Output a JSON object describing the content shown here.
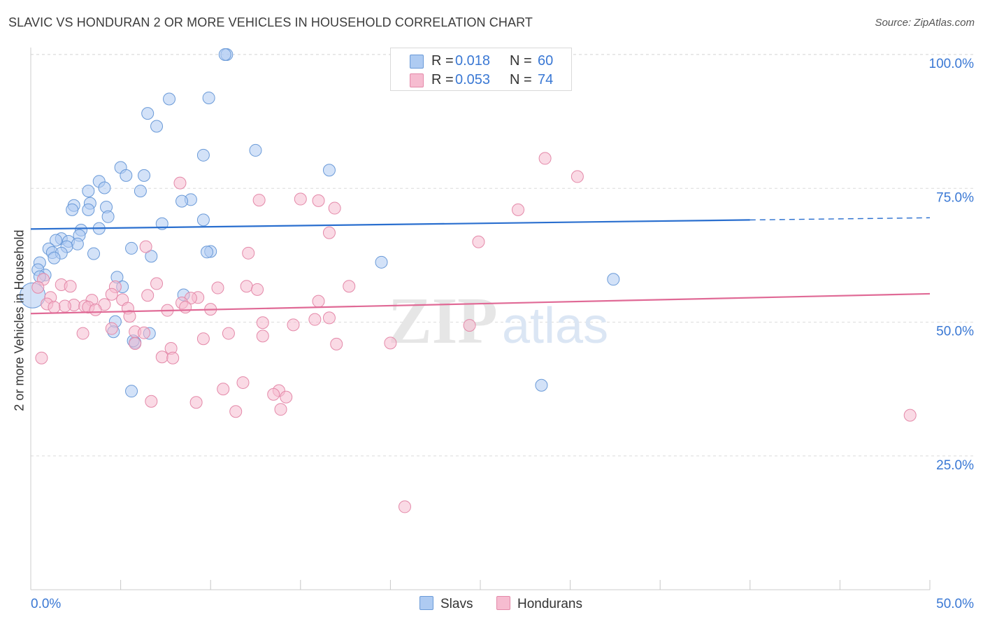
{
  "header": {
    "title": "SLAVIC VS HONDURAN 2 OR MORE VEHICLES IN HOUSEHOLD CORRELATION CHART",
    "source": "Source: ZipAtlas.com"
  },
  "watermark": {
    "zip": "ZIP",
    "atlas": "atlas"
  },
  "legend": {
    "r_label": "R =",
    "n_label": "N =",
    "rows": [
      {
        "r": "0.018",
        "n": "60",
        "color": "#aecbf2",
        "border": "#6a9ad8"
      },
      {
        "r": "0.053",
        "n": "74",
        "color": "#f6bcd0",
        "border": "#e489a9"
      }
    ]
  },
  "colors": {
    "accent": "#3a78d4",
    "slavs_line": "#2a6fcf",
    "hondurans_line": "#e06a96"
  },
  "chart_data": {
    "type": "scatter",
    "title": "SLAVIC VS HONDURAN 2 OR MORE VEHICLES IN HOUSEHOLD CORRELATION CHART",
    "xlabel": "",
    "ylabel": "2 or more Vehicles in Household",
    "xlim": [
      0,
      50
    ],
    "ylim": [
      0,
      100
    ],
    "x_tick_labels": [
      "0.0%",
      "50.0%"
    ],
    "y_tick_labels": [
      "25.0%",
      "50.0%",
      "75.0%",
      "100.0%"
    ],
    "y_ticks": [
      25,
      50,
      75,
      100
    ],
    "grid": true,
    "series": [
      {
        "name": "Slavs",
        "R": 0.018,
        "N": 60,
        "trend": {
          "x": [
            0,
            40,
            50
          ],
          "y": [
            67.4,
            69.1,
            69.5
          ],
          "dashed_from": 40
        },
        "points": [
          [
            10.9,
            100
          ],
          [
            10.8,
            100
          ],
          [
            9.9,
            91.9
          ],
          [
            7.7,
            91.7
          ],
          [
            6.5,
            89
          ],
          [
            7.0,
            86.6
          ],
          [
            12.5,
            82.1
          ],
          [
            9.6,
            81.2
          ],
          [
            16.6,
            78.4
          ],
          [
            5.0,
            78.9
          ],
          [
            6.3,
            77.4
          ],
          [
            5.3,
            77.4
          ],
          [
            3.8,
            76.3
          ],
          [
            4.1,
            75.1
          ],
          [
            6.1,
            74.5
          ],
          [
            3.2,
            74.5
          ],
          [
            8.9,
            72.9
          ],
          [
            8.4,
            72.6
          ],
          [
            3.3,
            72.2
          ],
          [
            4.2,
            71.5
          ],
          [
            2.4,
            71.8
          ],
          [
            2.3,
            71.0
          ],
          [
            3.2,
            71.0
          ],
          [
            4.3,
            69.7
          ],
          [
            9.6,
            69.1
          ],
          [
            7.3,
            68.4
          ],
          [
            3.8,
            67.5
          ],
          [
            2.8,
            67.2
          ],
          [
            2.7,
            66.2
          ],
          [
            1.7,
            65.6
          ],
          [
            1.4,
            65.3
          ],
          [
            2.1,
            65.1
          ],
          [
            2.6,
            64.6
          ],
          [
            2.0,
            64.1
          ],
          [
            1.0,
            63.7
          ],
          [
            5.6,
            63.8
          ],
          [
            1.2,
            63.0
          ],
          [
            10.0,
            63.2
          ],
          [
            9.8,
            63.1
          ],
          [
            1.7,
            62.9
          ],
          [
            3.5,
            62.8
          ],
          [
            6.7,
            62.3
          ],
          [
            1.3,
            62.0
          ],
          [
            19.5,
            61.2
          ],
          [
            0.5,
            61.1
          ],
          [
            0.4,
            59.8
          ],
          [
            0.8,
            58.8
          ],
          [
            0.5,
            58.5
          ],
          [
            4.8,
            58.4
          ],
          [
            32.4,
            58.0
          ],
          [
            5.1,
            56.6
          ],
          [
            8.5,
            55.1
          ],
          [
            4.7,
            50.1
          ],
          [
            4.6,
            48.2
          ],
          [
            6.6,
            47.9
          ],
          [
            5.8,
            46.2
          ],
          [
            5.7,
            46.5
          ],
          [
            28.4,
            38.2
          ],
          [
            5.6,
            37.1
          ],
          [
            0.1,
            55.0
          ]
        ]
      },
      {
        "name": "Hondurans",
        "R": 0.053,
        "N": 74,
        "trend": {
          "x": [
            0,
            50
          ],
          "y": [
            51.6,
            55.3
          ]
        },
        "points": [
          [
            28.6,
            80.6
          ],
          [
            30.4,
            77.2
          ],
          [
            8.3,
            76.0
          ],
          [
            15.0,
            73.0
          ],
          [
            12.7,
            72.8
          ],
          [
            16.0,
            72.7
          ],
          [
            16.9,
            71.3
          ],
          [
            27.1,
            71.0
          ],
          [
            16.6,
            66.7
          ],
          [
            24.9,
            65.0
          ],
          [
            6.4,
            64.1
          ],
          [
            12.1,
            62.9
          ],
          [
            0.7,
            58.0
          ],
          [
            7.0,
            57.2
          ],
          [
            1.7,
            57.0
          ],
          [
            2.2,
            56.7
          ],
          [
            17.7,
            56.7
          ],
          [
            12.0,
            56.7
          ],
          [
            4.7,
            56.6
          ],
          [
            10.4,
            56.4
          ],
          [
            12.6,
            56.1
          ],
          [
            0.4,
            56.5
          ],
          [
            4.5,
            55.2
          ],
          [
            6.5,
            55.0
          ],
          [
            9.3,
            54.6
          ],
          [
            8.9,
            54.5
          ],
          [
            5.1,
            54.2
          ],
          [
            1.1,
            54.6
          ],
          [
            3.4,
            54.1
          ],
          [
            16.0,
            53.9
          ],
          [
            0.9,
            53.4
          ],
          [
            8.4,
            53.6
          ],
          [
            4.1,
            53.3
          ],
          [
            2.4,
            53.2
          ],
          [
            3.0,
            53.0
          ],
          [
            3.2,
            52.8
          ],
          [
            1.9,
            53.0
          ],
          [
            1.3,
            52.8
          ],
          [
            8.6,
            52.8
          ],
          [
            5.4,
            52.6
          ],
          [
            10.0,
            52.4
          ],
          [
            7.6,
            52.2
          ],
          [
            3.6,
            52.3
          ],
          [
            5.5,
            51.1
          ],
          [
            15.8,
            50.5
          ],
          [
            16.6,
            50.8
          ],
          [
            12.9,
            49.9
          ],
          [
            14.6,
            49.5
          ],
          [
            24.4,
            49.4
          ],
          [
            4.5,
            48.8
          ],
          [
            5.8,
            48.2
          ],
          [
            6.3,
            48.0
          ],
          [
            11.0,
            47.9
          ],
          [
            2.9,
            47.9
          ],
          [
            12.9,
            47.4
          ],
          [
            9.6,
            46.9
          ],
          [
            17.0,
            45.9
          ],
          [
            20.0,
            46.1
          ],
          [
            5.8,
            46.0
          ],
          [
            7.8,
            45.1
          ],
          [
            7.3,
            43.5
          ],
          [
            7.9,
            43.3
          ],
          [
            0.6,
            43.3
          ],
          [
            11.8,
            38.7
          ],
          [
            10.7,
            37.5
          ],
          [
            13.8,
            37.2
          ],
          [
            13.5,
            36.5
          ],
          [
            14.2,
            36.0
          ],
          [
            6.7,
            35.2
          ],
          [
            9.2,
            35.0
          ],
          [
            11.4,
            33.3
          ],
          [
            13.9,
            33.7
          ],
          [
            48.9,
            32.6
          ],
          [
            20.8,
            15.5
          ]
        ]
      }
    ]
  },
  "bottom_legend": [
    "Slavs",
    "Hondurans"
  ]
}
